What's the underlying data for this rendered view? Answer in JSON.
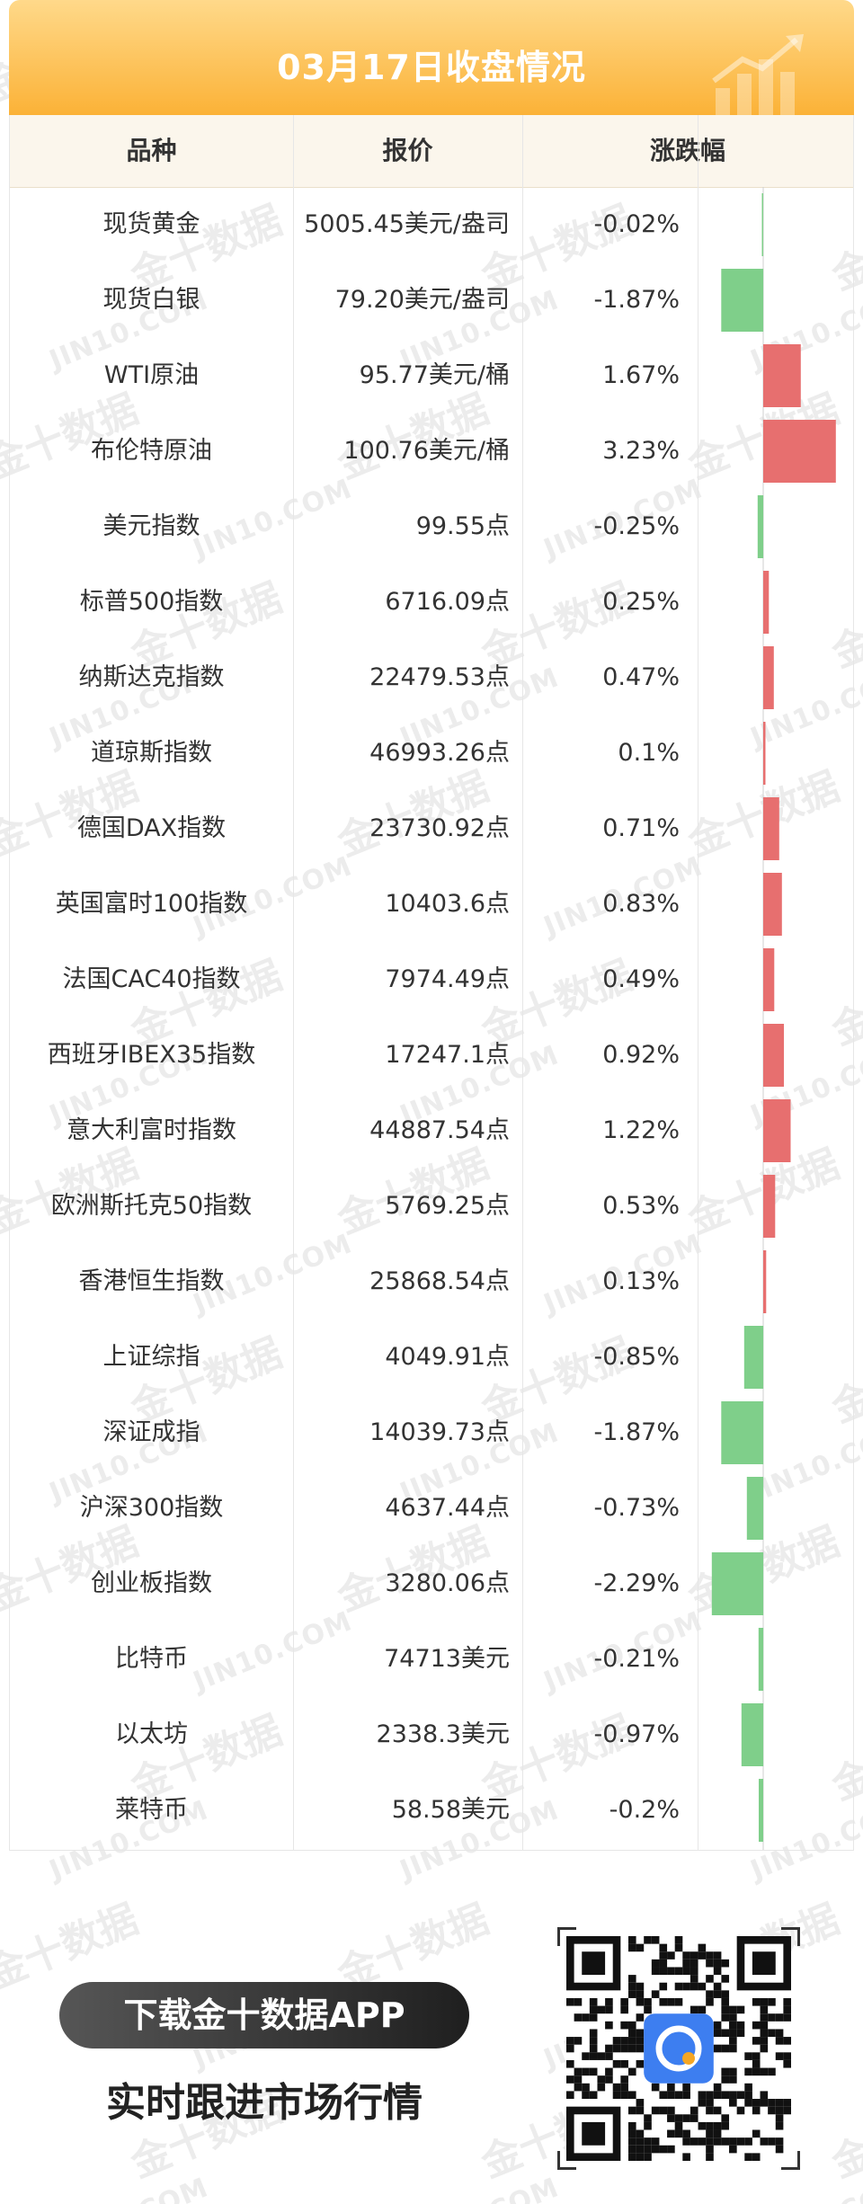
{
  "header": {
    "title": "03月17日收盘情况"
  },
  "table": {
    "columns": [
      "品种",
      "报价",
      "涨跌幅"
    ],
    "rows": [
      {
        "name": "现货黄金",
        "price": "5005.45美元/盎司",
        "change": "-0.02%"
      },
      {
        "name": "现货白银",
        "price": "79.20美元/盎司",
        "change": "-1.87%"
      },
      {
        "name": "WTI原油",
        "price": "95.77美元/桶",
        "change": "1.67%"
      },
      {
        "name": "布伦特原油",
        "price": "100.76美元/桶",
        "change": "3.23%"
      },
      {
        "name": "美元指数",
        "price": "99.55点",
        "change": "-0.25%"
      },
      {
        "name": "标普500指数",
        "price": "6716.09点",
        "change": "0.25%"
      },
      {
        "name": "纳斯达克指数",
        "price": "22479.53点",
        "change": "0.47%"
      },
      {
        "name": "道琼斯指数",
        "price": "46993.26点",
        "change": "0.1%"
      },
      {
        "name": "德国DAX指数",
        "price": "23730.92点",
        "change": "0.71%"
      },
      {
        "name": "英国富时100指数",
        "price": "10403.6点",
        "change": "0.83%"
      },
      {
        "name": "法国CAC40指数",
        "price": "7974.49点",
        "change": "0.49%"
      },
      {
        "name": "西班牙IBEX35指数",
        "price": "17247.1点",
        "change": "0.92%"
      },
      {
        "name": "意大利富时指数",
        "price": "44887.54点",
        "change": "1.22%"
      },
      {
        "name": "欧洲斯托克50指数",
        "price": "5769.25点",
        "change": "0.53%"
      },
      {
        "name": "香港恒生指数",
        "price": "25868.54点",
        "change": "0.13%"
      },
      {
        "name": "上证综指",
        "price": "4049.91点",
        "change": "-0.85%"
      },
      {
        "name": "深证成指",
        "price": "14039.73点",
        "change": "-1.87%"
      },
      {
        "name": "沪深300指数",
        "price": "4637.44点",
        "change": "-0.73%"
      },
      {
        "name": "创业板指数",
        "price": "3280.06点",
        "change": "-2.29%"
      },
      {
        "name": "比特币",
        "price": "74713美元",
        "change": "-0.21%"
      },
      {
        "name": "以太坊",
        "price": "2338.3美元",
        "change": "-0.97%"
      },
      {
        "name": "莱特币",
        "price": "58.58美元",
        "change": "-0.2%"
      }
    ]
  },
  "chart_data": {
    "type": "bar",
    "orientation": "horizontal",
    "categories": [
      "现货黄金",
      "现货白银",
      "WTI原油",
      "布伦特原油",
      "美元指数",
      "标普500指数",
      "纳斯达克指数",
      "道琼斯指数",
      "德国DAX指数",
      "英国富时100指数",
      "法国CAC40指数",
      "西班牙IBEX35指数",
      "意大利富时指数",
      "欧洲斯托克50指数",
      "香港恒生指数",
      "上证综指",
      "深证成指",
      "沪深300指数",
      "创业板指数",
      "比特币",
      "以太坊",
      "莱特币"
    ],
    "values": [
      -0.02,
      -1.87,
      1.67,
      3.23,
      -0.25,
      0.25,
      0.47,
      0.1,
      0.71,
      0.83,
      0.49,
      0.92,
      1.22,
      0.53,
      0.13,
      -0.85,
      -1.87,
      -0.73,
      -2.29,
      -0.21,
      -0.97,
      -0.2
    ],
    "positive_color": "#e76f6f",
    "negative_color": "#7fcf8a"
  },
  "watermark": {
    "brand_cn": "金十数据",
    "brand_en": "JIN10.COM"
  },
  "promo": {
    "button_label": "下载金十数据APP",
    "subtitle": "实时跟进市场行情"
  },
  "colors": {
    "title_gradient_top": "#ffd98a",
    "title_gradient_bottom": "#fbb237",
    "header_bg": "#fbf6ec"
  }
}
